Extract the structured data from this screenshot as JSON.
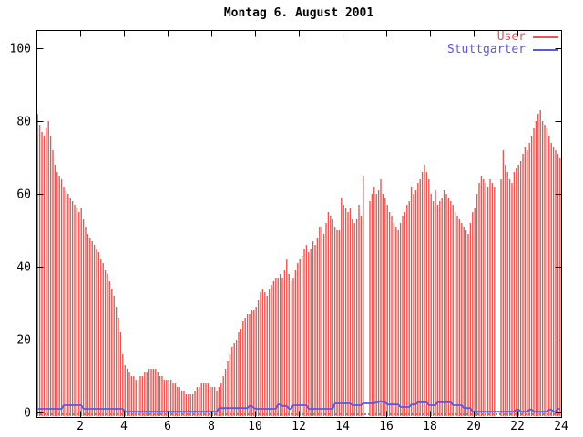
{
  "chart_data": {
    "type": "bar",
    "title": "Montag 6. August 2001",
    "xlabel": "",
    "ylabel": "",
    "xlim": [
      0,
      24
    ],
    "ylim": [
      0,
      100
    ],
    "x_ticks": [
      2,
      4,
      6,
      8,
      10,
      12,
      14,
      16,
      18,
      20,
      22,
      24
    ],
    "y_ticks": [
      0,
      20,
      40,
      60,
      80,
      100
    ],
    "grid": false,
    "legend_position": "top-right-inside",
    "x_start": 0.05,
    "x_step": 0.1,
    "series": [
      {
        "name": "User",
        "style": "impulses",
        "color": "#ef5350",
        "values": [
          [
            82,
            79,
            77,
            76,
            78,
            80,
            76,
            72,
            68,
            66
          ],
          [
            65,
            64,
            62,
            61,
            60,
            59,
            58,
            57,
            56,
            55
          ],
          [
            56,
            53,
            51,
            49,
            48,
            47,
            46,
            45,
            44,
            42
          ],
          [
            41,
            39,
            38,
            36,
            34,
            32,
            29,
            26,
            22,
            16
          ],
          [
            13,
            12,
            11,
            10,
            10,
            9,
            9,
            10,
            10,
            11
          ],
          [
            11,
            12,
            12,
            12,
            12,
            11,
            10,
            10,
            9,
            9
          ],
          [
            9,
            9,
            8,
            8,
            7,
            7,
            6,
            6,
            5,
            5
          ],
          [
            5,
            5,
            6,
            7,
            7,
            8,
            8,
            8,
            8,
            7
          ],
          [
            7,
            7,
            6,
            7,
            8,
            10,
            12,
            14,
            16,
            18
          ],
          [
            19,
            20,
            22,
            23,
            25,
            26,
            27,
            27,
            28,
            28
          ],
          [
            29,
            31,
            33,
            34,
            33,
            32,
            34,
            35,
            36,
            37
          ],
          [
            37,
            38,
            37,
            39,
            42,
            38,
            36,
            37,
            39,
            41
          ],
          [
            42,
            43,
            45,
            46,
            44,
            45,
            47,
            46,
            48,
            51
          ],
          [
            51,
            49,
            52,
            55,
            54,
            53,
            51,
            50,
            50,
            59
          ],
          [
            57,
            56,
            55,
            56,
            53,
            52,
            53,
            57,
            54,
            65
          ],
          [
            null,
            null,
            58,
            60,
            62,
            60,
            61,
            64,
            60,
            59
          ],
          [
            57,
            55,
            54,
            52,
            51,
            50,
            52,
            54,
            55,
            57
          ],
          [
            58,
            62,
            60,
            61,
            63,
            64,
            66,
            68,
            66,
            64
          ],
          [
            60,
            58,
            61,
            57,
            58,
            59,
            61,
            60,
            59,
            58
          ],
          [
            57,
            55,
            54,
            53,
            52,
            51,
            50,
            49,
            52,
            55
          ],
          [
            56,
            60,
            63,
            65,
            64,
            63,
            62,
            64,
            63,
            62
          ],
          [
            null,
            null,
            64,
            72,
            68,
            66,
            64,
            63,
            66,
            67
          ],
          [
            68,
            69,
            71,
            73,
            72,
            74,
            76,
            78,
            80,
            82
          ],
          [
            83,
            80,
            79,
            78,
            76,
            74,
            73,
            72,
            71,
            70
          ]
        ]
      },
      {
        "name": "Stuttgarter",
        "style": "lines",
        "color": "#5b58e0",
        "values": [
          [
            1,
            1,
            1,
            1,
            1,
            1,
            1,
            1,
            1,
            1
          ],
          [
            1,
            1,
            2,
            2,
            2,
            2,
            2,
            2,
            2,
            2
          ],
          [
            2,
            1,
            1,
            1,
            1,
            1,
            1,
            1,
            1,
            1
          ],
          [
            1,
            1,
            1,
            1,
            1,
            1,
            1,
            1,
            1,
            1
          ],
          [
            0.2,
            0.2,
            0.2,
            0.2,
            0.2,
            0.2,
            0.2,
            0.2,
            0.2,
            0.2
          ],
          [
            0.2,
            0.2,
            0.2,
            0.2,
            0.2,
            0.2,
            0.2,
            0.2,
            0.2,
            0.2
          ],
          [
            0.2,
            0.2,
            0.2,
            0.2,
            0.2,
            0.2,
            0.2,
            0.2,
            0.2,
            0.2
          ],
          [
            0.2,
            0.2,
            0.2,
            0.2,
            0.2,
            0.2,
            0.2,
            0.2,
            0.2,
            0.2
          ],
          [
            0.2,
            0.2,
            0.2,
            1.2,
            1.2,
            1.2,
            1.2,
            1.2,
            1.2,
            1.2
          ],
          [
            1.2,
            1.2,
            1.2,
            1.2,
            1.2,
            1.2,
            1.2,
            1.8,
            1.8,
            1.2
          ],
          [
            1,
            1,
            1,
            1,
            1,
            1,
            1,
            1,
            1,
            1
          ],
          [
            2.2,
            2.2,
            1.8,
            1.8,
            1.8,
            1,
            1,
            2,
            2,
            2
          ],
          [
            2,
            2,
            2,
            2,
            1,
            1,
            1,
            1,
            1,
            1
          ],
          [
            1,
            1,
            1,
            1,
            1,
            1,
            2.5,
            2.5,
            2.5,
            2.5
          ],
          [
            2.5,
            2.5,
            2.5,
            2.5,
            2,
            2,
            2,
            2,
            2,
            2.5
          ],
          [
            2.5,
            2.5,
            2.5,
            2.5,
            2.5,
            2.8,
            2.8,
            3.2,
            2.8,
            2.8
          ],
          [
            2.2,
            2.2,
            2.2,
            2.2,
            2.2,
            2.2,
            1.5,
            1.5,
            1.5,
            1.5
          ],
          [
            1.5,
            2.2,
            2.2,
            2.2,
            2.8,
            2.8,
            2.8,
            2.8,
            2.8,
            2
          ],
          [
            2,
            2,
            2,
            2.8,
            2.8,
            2.8,
            2.8,
            2.8,
            2.8,
            2.8
          ],
          [
            2,
            2,
            2,
            2,
            2,
            1.2,
            1.2,
            1.2,
            1.2,
            0.2
          ],
          [
            0.2,
            0.2,
            0.2,
            0.2,
            0.2,
            0.2,
            0.2,
            0.2,
            0.2,
            0.2
          ],
          [
            0.2,
            0.2,
            0.2,
            0.2,
            0.2,
            0.2,
            0.2,
            0.2,
            0.2,
            0.8
          ],
          [
            0.8,
            0.2,
            0.2,
            0.2,
            0.2,
            0.8,
            0.8,
            0.2,
            0.2,
            0.2
          ],
          [
            0.2,
            0.2,
            0.2,
            0.2,
            0.8,
            0.8,
            0.2,
            0.2,
            1,
            1
          ]
        ]
      }
    ]
  },
  "colors": {
    "background": "#ffffff",
    "axis": "#000000",
    "text": "#000000",
    "zero_baseline": "#1a1a1a"
  }
}
